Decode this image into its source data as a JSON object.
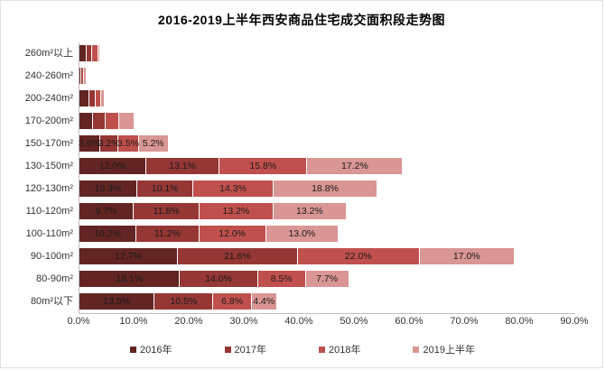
{
  "chart_data": {
    "type": "bar",
    "orientation": "horizontal",
    "stacked": true,
    "title": "2016-2019上半年西安商品住宅成交面积段走势图",
    "categories": [
      "260m²以上",
      "240-260m²",
      "200-240m²",
      "170-200m²",
      "150-170m²",
      "130-150m²",
      "120-130m²",
      "110-120m²",
      "100-110m²",
      "90-100m²",
      "80-90m²",
      "80m²以下"
    ],
    "series": [
      {
        "name": "2016年",
        "color": "#632523",
        "values": [
          1.1,
          0.1,
          1.6,
          2.3,
          3.6,
          12.0,
          10.3,
          9.7,
          10.2,
          17.7,
          18.1,
          13.5
        ],
        "labels": [
          "",
          "",
          "",
          "",
          "3.6%",
          "12.0%",
          "10.3%",
          "9.7%",
          "10.2%",
          "17.7%",
          "18.1%",
          "13.5%"
        ]
      },
      {
        "name": "2017年",
        "color": "#953735",
        "values": [
          0.8,
          0.1,
          1.1,
          2.1,
          3.2,
          13.1,
          10.1,
          11.8,
          11.2,
          21.6,
          14.0,
          10.5
        ],
        "labels": [
          "",
          "",
          "",
          "",
          "3.2%",
          "13.1%",
          "10.1%",
          "11.8%",
          "11.2%",
          "21.6%",
          "14.0%",
          "10.5%"
        ]
      },
      {
        "name": "2018年",
        "color": "#C0504D",
        "values": [
          1.0,
          0.1,
          0.7,
          2.3,
          3.5,
          15.8,
          14.3,
          13.2,
          12.0,
          22.0,
          8.5,
          6.8
        ],
        "labels": [
          "",
          "",
          "",
          "",
          "3.5%",
          "15.8%",
          "14.3%",
          "13.2%",
          "12.0%",
          "22.0%",
          "8.5%",
          "6.8%"
        ]
      },
      {
        "name": "2019上半年",
        "color": "#D99694",
        "values": [
          0.2,
          0.3,
          0.5,
          2.6,
          5.2,
          17.2,
          18.8,
          13.2,
          13.0,
          17.0,
          7.7,
          4.4
        ],
        "labels": [
          "",
          "",
          "",
          "",
          "5.2%",
          "17.2%",
          "18.8%",
          "13.2%",
          "13.0%",
          "17.0%",
          "7.7%",
          "4.4%"
        ]
      }
    ],
    "xlim": [
      0,
      90
    ],
    "xticks": [
      "0.0%",
      "10.0%",
      "20.0%",
      "30.0%",
      "40.0%",
      "50.0%",
      "60.0%",
      "70.0%",
      "80.0%",
      "90.0%"
    ],
    "grid": false,
    "legend_position": "bottom",
    "axis_color": "#bfbfbf",
    "data_label_color": "#1a1a1a",
    "tick_label_color": "#333333"
  }
}
